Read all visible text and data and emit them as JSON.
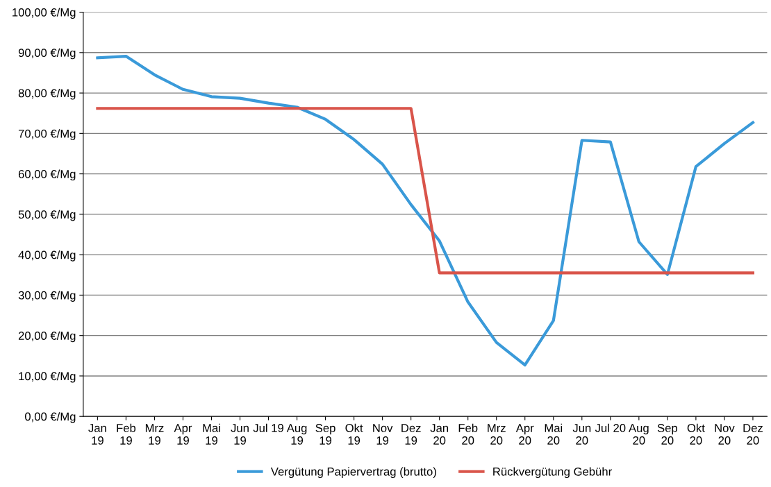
{
  "chart_data": {
    "type": "line",
    "categories": [
      "Jan\n19",
      "Feb\n19",
      "Mrz\n19",
      "Apr\n19",
      "Mai\n19",
      "Jun\n19",
      "Jul 19",
      "Aug\n19",
      "Sep\n19",
      "Okt\n19",
      "Nov\n19",
      "Dez\n19",
      "Jan\n20",
      "Feb\n20",
      "Mrz\n20",
      "Apr\n20",
      "Mai\n20",
      "Jun\n20",
      "Jul 20",
      "Aug\n20",
      "Sep\n20",
      "Okt\n20",
      "Nov\n20",
      "Dez\n20"
    ],
    "series": [
      {
        "name": "Vergütung Papiervertrag (brutto)",
        "color": "#3a9ad9",
        "values": [
          88.7,
          89.1,
          84.5,
          80.9,
          79.1,
          78.7,
          77.5,
          76.5,
          73.5,
          68.5,
          62.4,
          52.4,
          43.4,
          28.3,
          18.3,
          12.7,
          23.7,
          68.3,
          67.9,
          43.2,
          35.1,
          61.8,
          67.5,
          72.7
        ]
      },
      {
        "name": "Rückvergütung Gebühr",
        "color": "#d9544a",
        "values": [
          76.2,
          76.2,
          76.2,
          76.2,
          76.2,
          76.2,
          76.2,
          76.2,
          76.2,
          76.2,
          76.2,
          76.2,
          35.5,
          35.5,
          35.5,
          35.5,
          35.5,
          35.5,
          35.5,
          35.5,
          35.5,
          35.5,
          35.5,
          35.5
        ]
      }
    ],
    "ylim": [
      0,
      100
    ],
    "yticks": [
      {
        "value": 0,
        "label": "0,00 €/Mg"
      },
      {
        "value": 10,
        "label": "10,00 €/Mg"
      },
      {
        "value": 20,
        "label": "20,00 €/Mg"
      },
      {
        "value": 30,
        "label": "30,00 €/Mg"
      },
      {
        "value": 40,
        "label": "40,00 €/Mg"
      },
      {
        "value": 50,
        "label": "50,00 €/Mg"
      },
      {
        "value": 60,
        "label": "60,00 €/Mg"
      },
      {
        "value": 70,
        "label": "70,00 €/Mg"
      },
      {
        "value": 80,
        "label": "80,00 €/Mg"
      },
      {
        "value": 90,
        "label": "90,00 €/Mg"
      },
      {
        "value": 100,
        "label": "100,00 €/Mg"
      }
    ],
    "grid": "y",
    "legend": "bottom",
    "marker": "none",
    "line_style": "solid"
  }
}
